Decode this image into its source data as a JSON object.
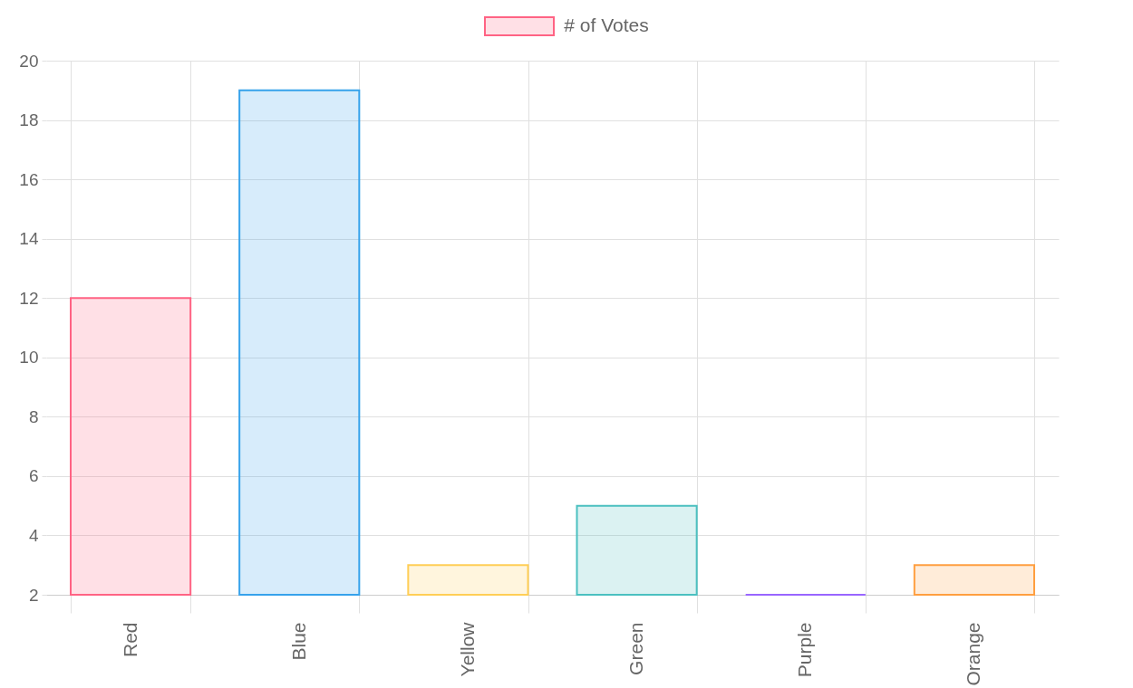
{
  "chart_data": {
    "type": "bar",
    "categories": [
      "Red",
      "Blue",
      "Yellow",
      "Green",
      "Purple",
      "Orange"
    ],
    "series": [
      {
        "name": "# of Votes",
        "colors": [
          "#ff6384",
          "#36a2eb",
          "#ffce56",
          "#4bc0c0",
          "#9966ff",
          "#ff9f40"
        ],
        "values": [
          12,
          19,
          3,
          5,
          2,
          3
        ]
      }
    ],
    "ylim": [
      2,
      20
    ],
    "yticks": [
      2,
      4,
      6,
      8,
      10,
      12,
      14,
      16,
      18,
      20
    ],
    "grid": true,
    "legend": "top"
  }
}
